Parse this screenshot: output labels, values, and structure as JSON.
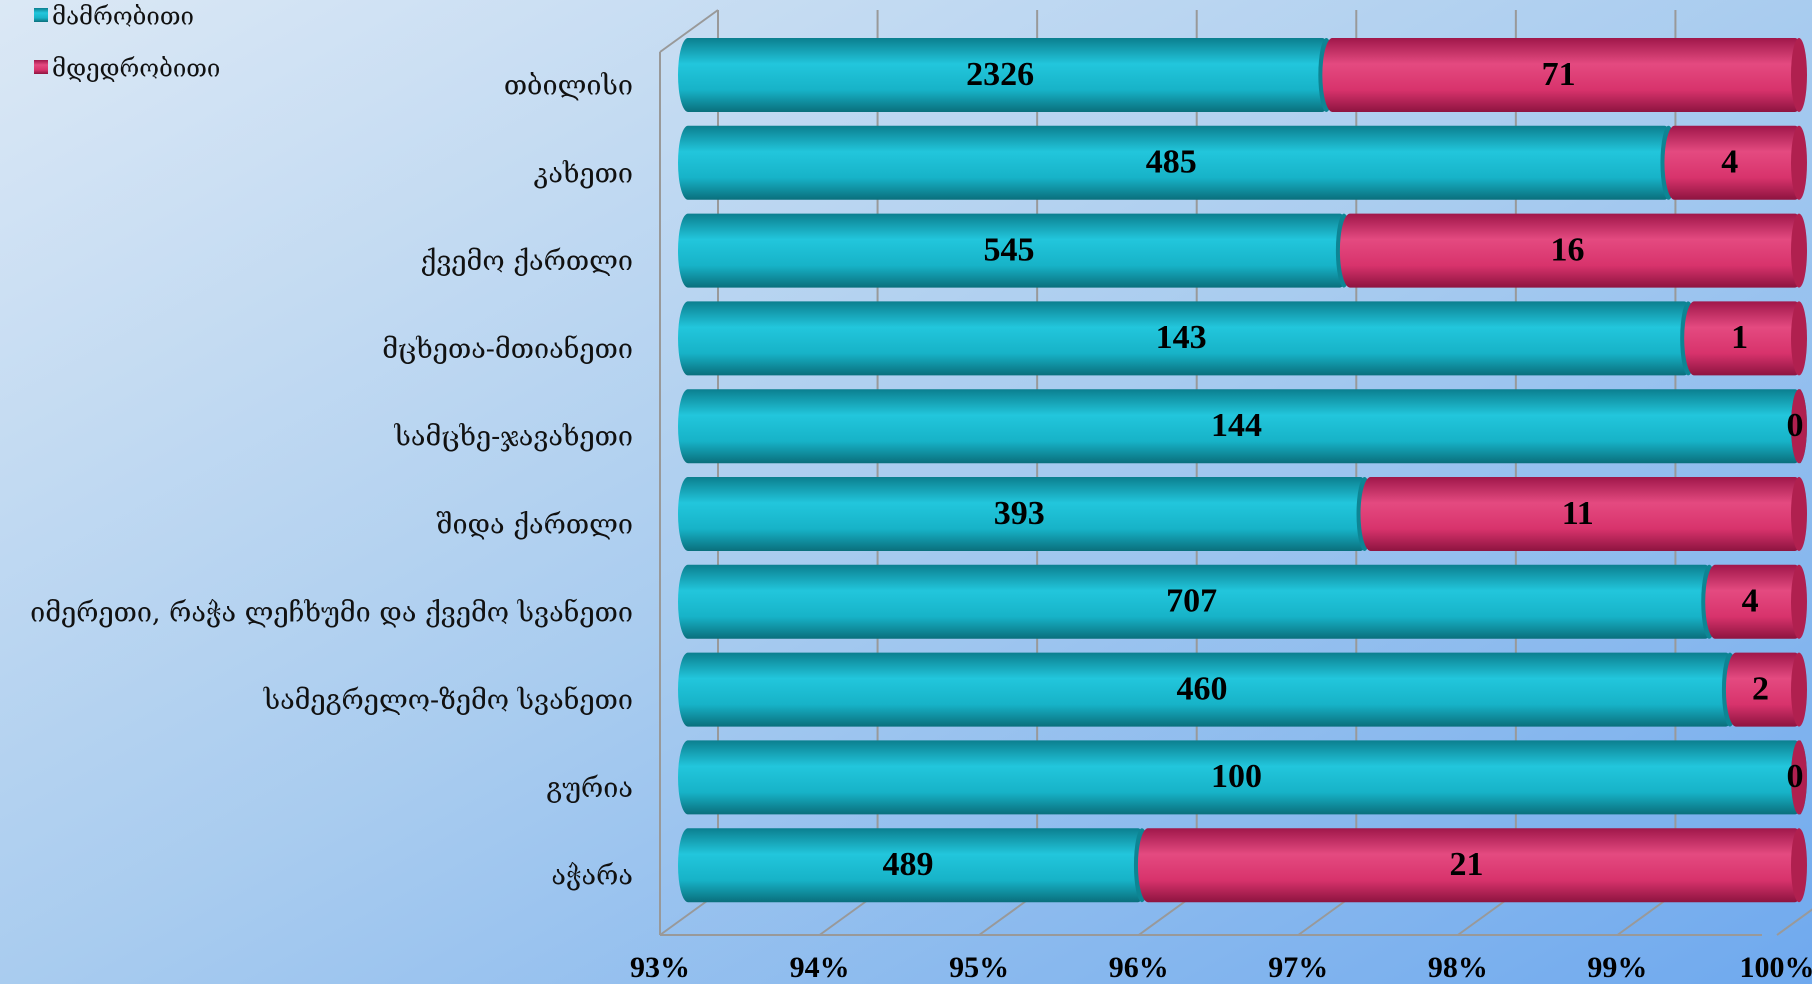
{
  "chart_data": {
    "type": "bar",
    "orientation": "horizontal",
    "stacked": "percent",
    "categories": [
      "თბილისი",
      "კახეთი",
      "ქვემო ქართლი",
      "მცხეთა-მთიანეთი",
      "სამცხე-ჯავახეთი",
      "შიდა ქართლი",
      "იმერეთი, რაჭა ლეჩხუმი და ქვემო სვანეთი",
      "სამეგრელო-ზემო სვანეთი",
      "გურია",
      "აჭარა"
    ],
    "series": [
      {
        "name": "მამრობითი",
        "color": "#17b3c8",
        "values": [
          2326,
          485,
          545,
          143,
          144,
          393,
          707,
          460,
          100,
          489
        ]
      },
      {
        "name": "მდედრობითი",
        "color": "#d8336c",
        "values": [
          71,
          4,
          16,
          1,
          0,
          11,
          4,
          2,
          0,
          21
        ]
      }
    ],
    "xlim": [
      93,
      100
    ],
    "xticks": [
      {
        "value": 93,
        "label": "93%"
      },
      {
        "value": 94,
        "label": "94%"
      },
      {
        "value": 95,
        "label": "95%"
      },
      {
        "value": 96,
        "label": "96%"
      },
      {
        "value": 97,
        "label": "97%"
      },
      {
        "value": 98,
        "label": "98%"
      },
      {
        "value": 99,
        "label": "99%"
      },
      {
        "value": 100,
        "label": "100%"
      }
    ],
    "grid": true,
    "legend": "top-left"
  }
}
